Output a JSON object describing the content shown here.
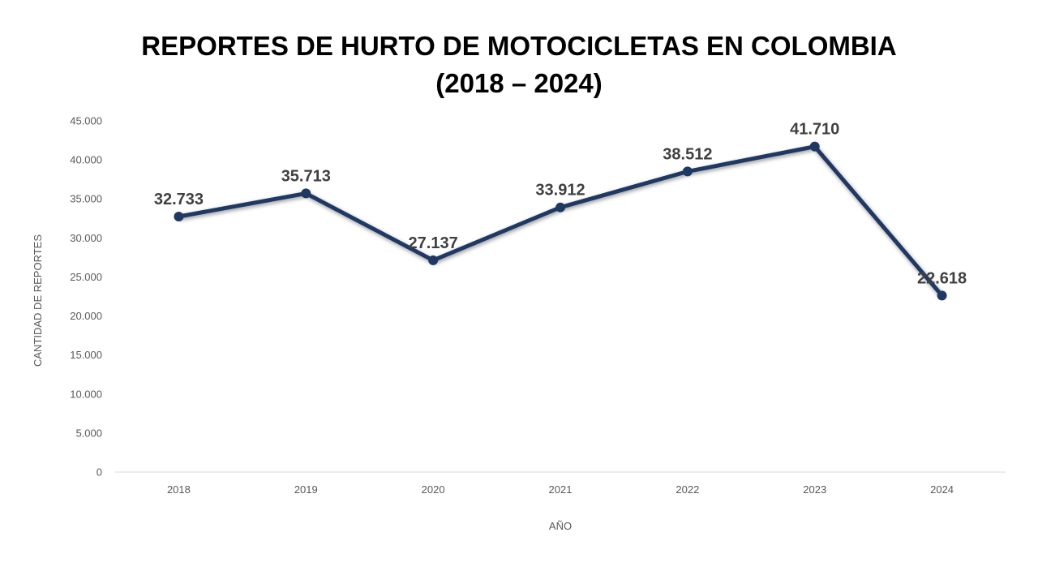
{
  "title_line1": "REPORTES DE HURTO DE MOTOCICLETAS EN COLOMBIA",
  "title_line2": "(2018 – 2024)",
  "colors": {
    "line": "#1f3864",
    "text": "#404040",
    "axis_text": "#595959",
    "axis_line": "#d9d9d9"
  },
  "chart_data": {
    "type": "line",
    "title": "REPORTES DE HURTO DE MOTOCICLETAS EN COLOMBIA (2018 – 2024)",
    "xlabel": "AÑO",
    "ylabel": "CANTIDAD DE REPORTES",
    "categories": [
      "2018",
      "2019",
      "2020",
      "2021",
      "2022",
      "2023",
      "2024"
    ],
    "values": [
      32733,
      35713,
      27137,
      33912,
      38512,
      41710,
      22618
    ],
    "data_labels": [
      "32.733",
      "35.713",
      "27.137",
      "33.912",
      "38.512",
      "41.710",
      "22.618"
    ],
    "ylim": [
      0,
      45000
    ],
    "yticks": [
      0,
      5000,
      10000,
      15000,
      20000,
      25000,
      30000,
      35000,
      40000,
      45000
    ],
    "ytick_labels": [
      "0",
      "5.000",
      "10.000",
      "15.000",
      "20.000",
      "25.000",
      "30.000",
      "35.000",
      "40.000",
      "45.000"
    ],
    "grid": false,
    "legend": "none"
  }
}
